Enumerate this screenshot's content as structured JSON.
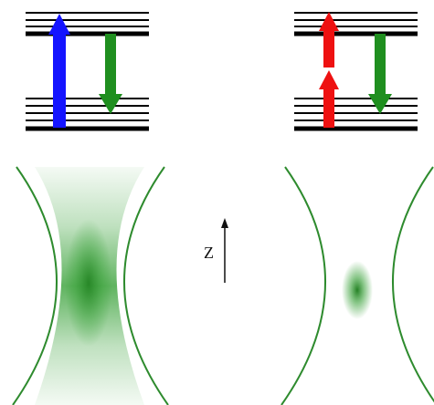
{
  "axis": {
    "label": "Z"
  },
  "colors": {
    "level_line": "#000000",
    "one_photon_excitation": "#1414ff",
    "two_photon_excitation": "#ee1111",
    "emission": "#1f8f1f",
    "beam_outline": "#2e8b2e",
    "fluorescence": "#2a9a2a"
  }
}
